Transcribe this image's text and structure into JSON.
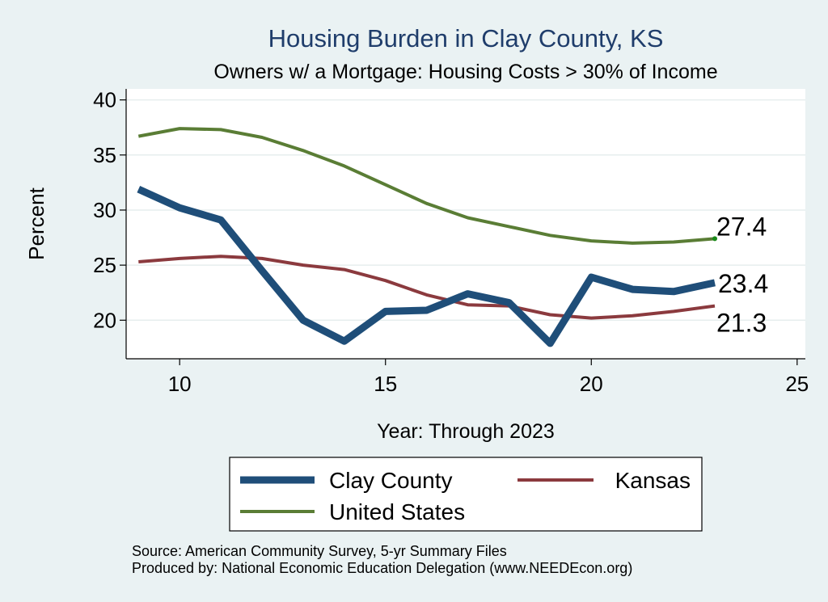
{
  "chart_data": {
    "type": "line",
    "title": "Housing Burden in Clay County, KS",
    "subtitle": "Owners w/ a Mortgage: Housing Costs > 30% of Income",
    "xlabel": "Year: Through 2023",
    "ylabel": "Percent",
    "xlim": [
      8.7,
      25.2
    ],
    "ylim": [
      16.5,
      41
    ],
    "xticks": [
      10,
      15,
      20,
      25
    ],
    "yticks": [
      20,
      25,
      30,
      35,
      40
    ],
    "grid": true,
    "legend_placement": "bottom",
    "x": [
      9,
      10,
      11,
      12,
      13,
      14,
      15,
      16,
      17,
      18,
      19,
      20,
      21,
      22,
      23
    ],
    "series": [
      {
        "name": "Clay County",
        "color": "#1f4e79",
        "width": 9,
        "values": [
          31.9,
          30.2,
          29.1,
          24.5,
          20.0,
          18.1,
          20.8,
          20.9,
          22.4,
          21.6,
          17.9,
          23.9,
          22.8,
          22.6,
          23.4
        ],
        "end_label": "23.4"
      },
      {
        "name": "Kansas",
        "color": "#8b3a3e",
        "width": 4,
        "values": [
          25.3,
          25.6,
          25.8,
          25.6,
          25.0,
          24.6,
          23.6,
          22.3,
          21.4,
          21.3,
          20.5,
          20.2,
          20.4,
          20.8,
          21.3
        ],
        "end_label": "21.3"
      },
      {
        "name": "United States",
        "color": "#5a7d35",
        "width": 4,
        "values": [
          36.7,
          37.4,
          37.3,
          36.6,
          35.4,
          34.0,
          32.3,
          30.6,
          29.3,
          28.5,
          27.7,
          27.2,
          27.0,
          27.1,
          27.4
        ],
        "end_label": "27.4"
      }
    ],
    "source": "Source: American Community Survey, 5-yr Summary Files",
    "producer": "Produced by: National Economic Education Delegation (www.NEEDEcon.org)"
  }
}
